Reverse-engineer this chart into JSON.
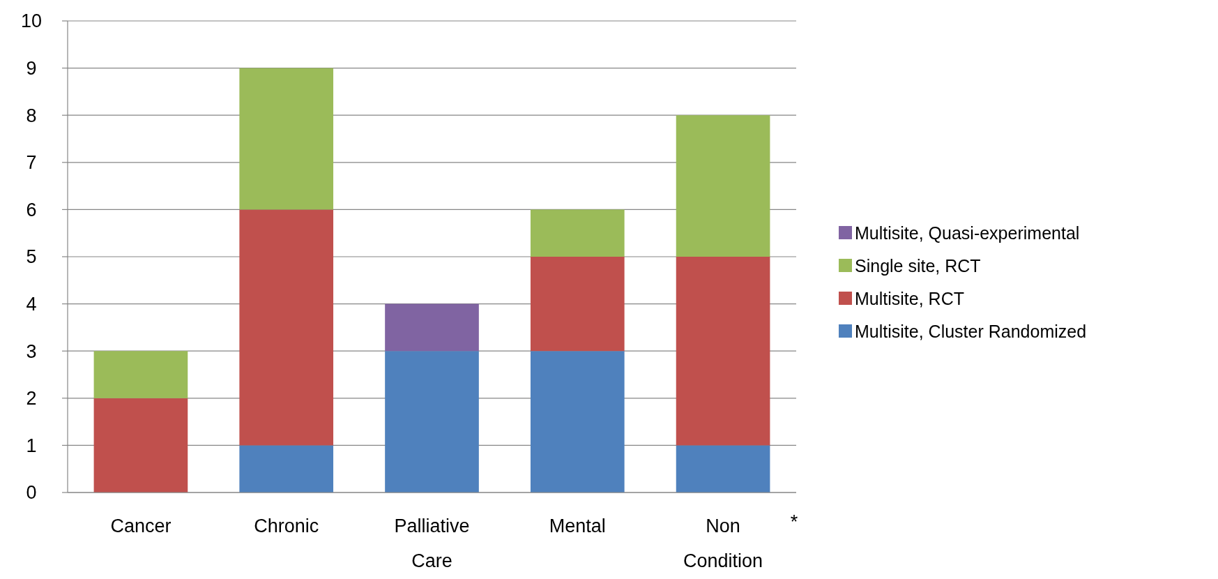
{
  "chart_data": {
    "type": "bar",
    "stacked": true,
    "categories": [
      "Cancer",
      "Chronic",
      "Palliative Care",
      "Mental",
      "Non Condition"
    ],
    "series": [
      {
        "name": "Multisite, Cluster Randomized",
        "color": "#4f81bd",
        "values": [
          0,
          1,
          3,
          3,
          1
        ]
      },
      {
        "name": "Multisite, RCT",
        "color": "#c0504d",
        "values": [
          2,
          5,
          0,
          2,
          4
        ]
      },
      {
        "name": "Single site, RCT",
        "color": "#9bbb59",
        "values": [
          1,
          3,
          0,
          1,
          3
        ]
      },
      {
        "name": "Multisite, Quasi-experimental",
        "color": "#8064a2",
        "values": [
          0,
          0,
          1,
          0,
          0
        ]
      }
    ],
    "ylim": [
      0,
      10
    ],
    "yticks": [
      0,
      1,
      2,
      3,
      4,
      5,
      6,
      7,
      8,
      9,
      10
    ],
    "grid": "y",
    "legend": "right",
    "annotations": [
      "*"
    ]
  }
}
